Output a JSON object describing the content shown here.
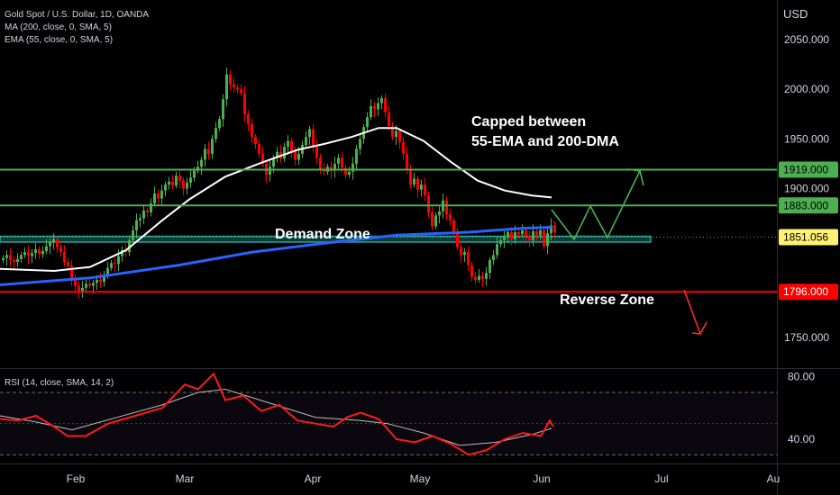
{
  "header": {
    "title": "Gold Spot / U.S. Dollar, 1D, OANDA",
    "ma_label": "MA (200, close, 0, SMA, 5)",
    "ema_label": "EMA (55, close, 0, SMA, 5)",
    "rsi_label": "RSI (14, close, SMA, 14, 2)"
  },
  "colors": {
    "background": "#000000",
    "candle_up": "#4caf50",
    "candle_down": "#ff0000",
    "ema55": "#ffffff",
    "ma200": "#2962ff",
    "resistance": "#4caf50",
    "support": "#ff0000",
    "demand_zone": "#26a69a",
    "rsi_line": "#ff1a1a",
    "rsi_ma": "#bfbfbf",
    "arrow_up": "#4caf50",
    "arrow_down": "#ff2a2a"
  },
  "chart_data": {
    "type": "candlestick",
    "title": "Gold Spot / U.S. Dollar, 1D, OANDA",
    "currency_label": "USD",
    "y_ticks": [
      "2050.000",
      "2000.000",
      "1950.000",
      "1900.000",
      "1750.000"
    ],
    "x_ticks": [
      "Feb",
      "Mar",
      "Apr",
      "May",
      "Jun",
      "Jul",
      "Au"
    ],
    "ylim": [
      1720,
      2090
    ],
    "price_labels": [
      {
        "value": 1919,
        "label": "1919.000",
        "style": "green"
      },
      {
        "value": 1883,
        "label": "1883.000",
        "style": "green"
      },
      {
        "value": 1851.056,
        "label": "1851.056",
        "style": "yellow"
      },
      {
        "value": 1796,
        "label": "1796.000",
        "style": "red"
      }
    ],
    "horizontal_lines": [
      {
        "name": "resistance-1919",
        "value": 1919
      },
      {
        "name": "resistance-1883",
        "value": 1883
      },
      {
        "name": "support-1796",
        "value": 1796
      }
    ],
    "demand_zone": [
      1847,
      1851
    ],
    "annotations": {
      "capped_line1": "Capped between",
      "capped_line2": "55-EMA and 200-DMA",
      "demand": "Demand Zone",
      "reverse": "Reverse Zone"
    },
    "closes": [
      1830,
      1833,
      1828,
      1826,
      1829,
      1833,
      1836,
      1832,
      1835,
      1839,
      1834,
      1837,
      1842,
      1846,
      1849,
      1841,
      1836,
      1826,
      1822,
      1810,
      1802,
      1795,
      1800,
      1804,
      1802,
      1805,
      1808,
      1806,
      1813,
      1820,
      1825,
      1824,
      1832,
      1838,
      1836,
      1848,
      1858,
      1868,
      1870,
      1878,
      1876,
      1885,
      1895,
      1890,
      1898,
      1904,
      1907,
      1903,
      1913,
      1908,
      1900,
      1906,
      1911,
      1918,
      1922,
      1929,
      1940,
      1935,
      1950,
      1961,
      1970,
      1990,
      2015,
      2005,
      2002,
      2000,
      1996,
      1975,
      1965,
      1952,
      1945,
      1935,
      1925,
      1914,
      1922,
      1931,
      1937,
      1930,
      1942,
      1948,
      1938,
      1929,
      1935,
      1944,
      1952,
      1960,
      1943,
      1931,
      1920,
      1917,
      1922,
      1918,
      1925,
      1931,
      1921,
      1914,
      1917,
      1925,
      1940,
      1950,
      1962,
      1972,
      1983,
      1980,
      1986,
      1991,
      1977,
      1963,
      1952,
      1958,
      1947,
      1935,
      1920,
      1904,
      1910,
      1899,
      1904,
      1893,
      1876,
      1862,
      1873,
      1877,
      1888,
      1874,
      1868,
      1855,
      1841,
      1833,
      1836,
      1823,
      1811,
      1808,
      1812,
      1809,
      1815,
      1828,
      1833,
      1844,
      1848,
      1852,
      1856,
      1849,
      1856,
      1854,
      1858,
      1852,
      1848,
      1857,
      1853,
      1858,
      1842,
      1855,
      1863,
      1856
    ],
    "ema55": [
      [
        0,
        1819
      ],
      [
        60,
        1817
      ],
      [
        100,
        1821
      ],
      [
        140,
        1838
      ],
      [
        180,
        1868
      ],
      [
        210,
        1889
      ],
      [
        250,
        1912
      ],
      [
        290,
        1926
      ],
      [
        330,
        1939
      ],
      [
        360,
        1945
      ],
      [
        390,
        1952
      ],
      [
        420,
        1961
      ],
      [
        440,
        1961
      ],
      [
        470,
        1948
      ],
      [
        500,
        1927
      ],
      [
        530,
        1908
      ],
      [
        560,
        1898
      ],
      [
        590,
        1893
      ],
      [
        612,
        1891
      ]
    ],
    "ma200": [
      [
        0,
        1803
      ],
      [
        100,
        1810
      ],
      [
        200,
        1823
      ],
      [
        280,
        1836
      ],
      [
        360,
        1845
      ],
      [
        440,
        1853
      ],
      [
        520,
        1856
      ],
      [
        580,
        1860
      ],
      [
        612,
        1861
      ]
    ],
    "rsi": {
      "y_ticks": [
        "80.00",
        "40.00"
      ],
      "ylim": [
        25,
        85
      ],
      "levels": [
        70,
        30
      ],
      "rsi": [
        [
          0,
          53
        ],
        [
          20,
          52
        ],
        [
          40,
          55
        ],
        [
          60,
          48
        ],
        [
          75,
          42
        ],
        [
          95,
          42
        ],
        [
          120,
          50
        ],
        [
          150,
          55
        ],
        [
          180,
          60
        ],
        [
          205,
          75
        ],
        [
          220,
          72
        ],
        [
          237,
          82
        ],
        [
          250,
          65
        ],
        [
          270,
          68
        ],
        [
          290,
          58
        ],
        [
          310,
          62
        ],
        [
          330,
          52
        ],
        [
          350,
          50
        ],
        [
          370,
          48
        ],
        [
          385,
          54
        ],
        [
          400,
          57
        ],
        [
          420,
          53
        ],
        [
          440,
          40
        ],
        [
          460,
          38
        ],
        [
          480,
          42
        ],
        [
          500,
          37
        ],
        [
          520,
          30
        ],
        [
          540,
          33
        ],
        [
          560,
          40
        ],
        [
          580,
          44
        ],
        [
          600,
          42
        ],
        [
          610,
          52
        ],
        [
          614,
          48
        ]
      ],
      "rsi_ma": [
        [
          0,
          55
        ],
        [
          40,
          51
        ],
        [
          80,
          46
        ],
        [
          130,
          54
        ],
        [
          180,
          62
        ],
        [
          220,
          70
        ],
        [
          250,
          72
        ],
        [
          300,
          63
        ],
        [
          350,
          54
        ],
        [
          400,
          52
        ],
        [
          430,
          50
        ],
        [
          470,
          44
        ],
        [
          510,
          36
        ],
        [
          550,
          38
        ],
        [
          590,
          43
        ],
        [
          612,
          47
        ]
      ]
    }
  }
}
